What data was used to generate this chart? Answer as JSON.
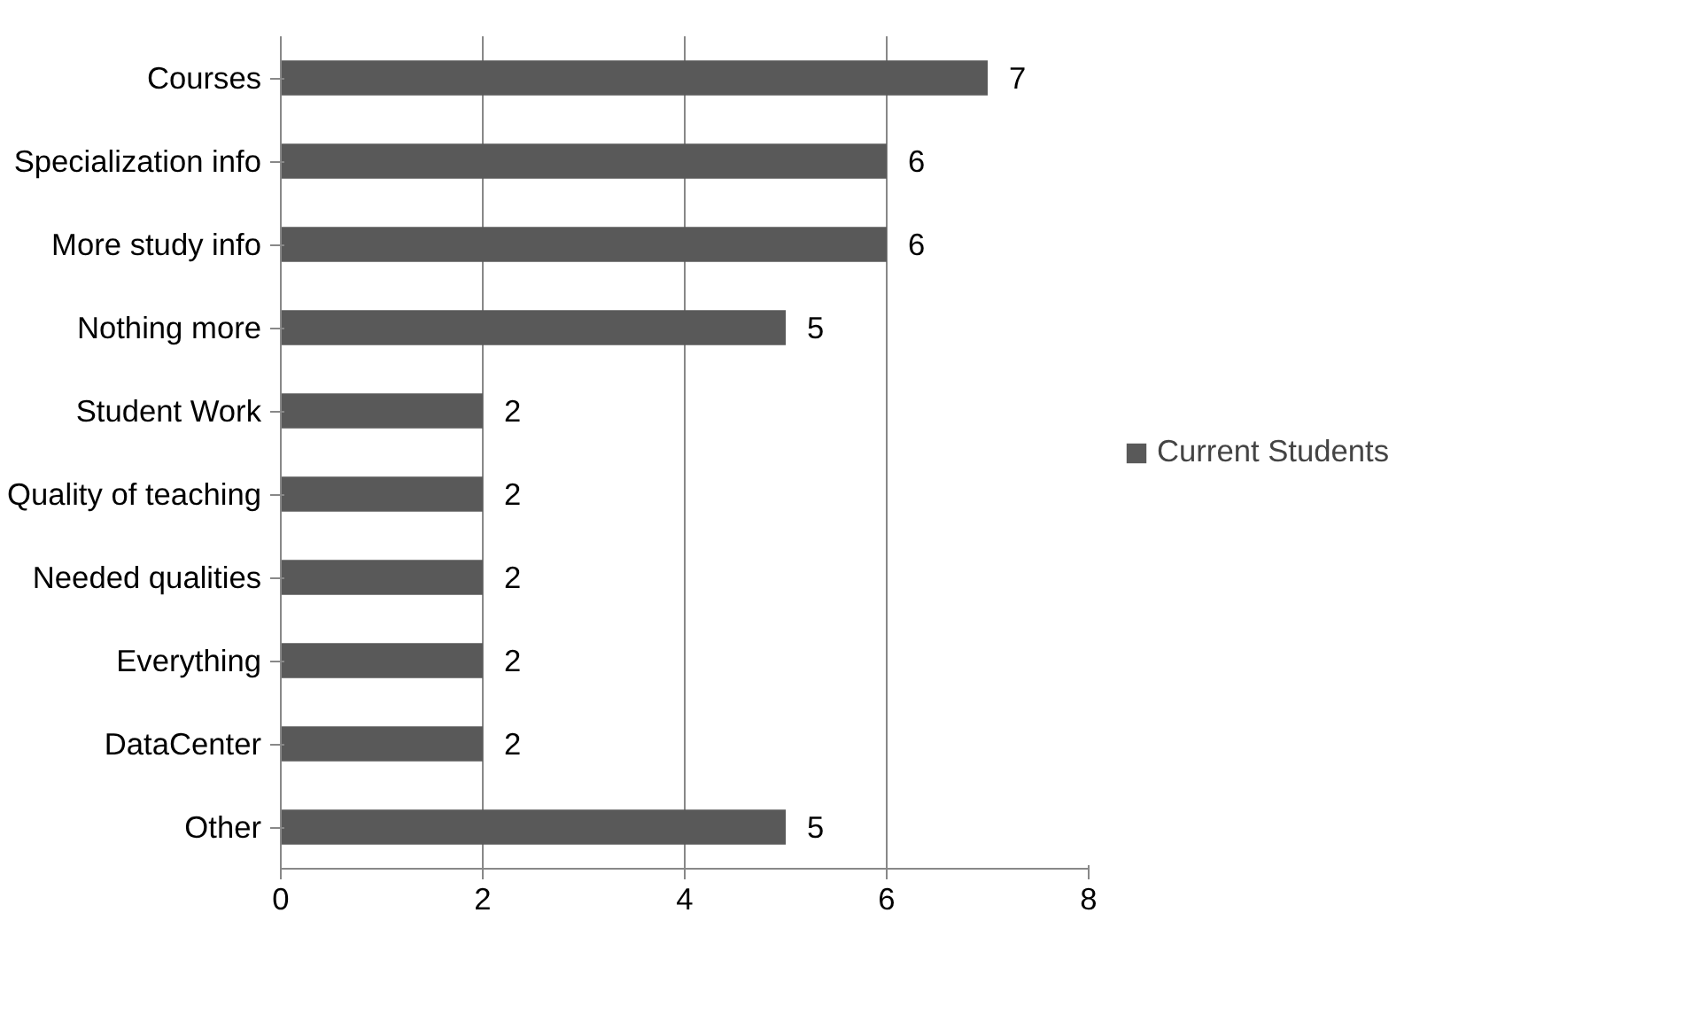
{
  "chart_data": {
    "type": "bar",
    "orientation": "horizontal",
    "categories": [
      "Courses",
      "Specialization info",
      "More study info",
      "Nothing more",
      "Student Work",
      "Quality of teaching",
      "Needed qualities",
      "Everything",
      "DataCenter",
      "Other"
    ],
    "series": [
      {
        "name": "Current Students",
        "color": "#595959",
        "values": [
          7,
          6,
          6,
          5,
          2,
          2,
          2,
          2,
          2,
          5
        ]
      }
    ],
    "xlim": [
      0,
      8
    ],
    "xticks": [
      0,
      2,
      4,
      6,
      8
    ],
    "grid": "x",
    "legend": "right",
    "data_labels": true
  }
}
